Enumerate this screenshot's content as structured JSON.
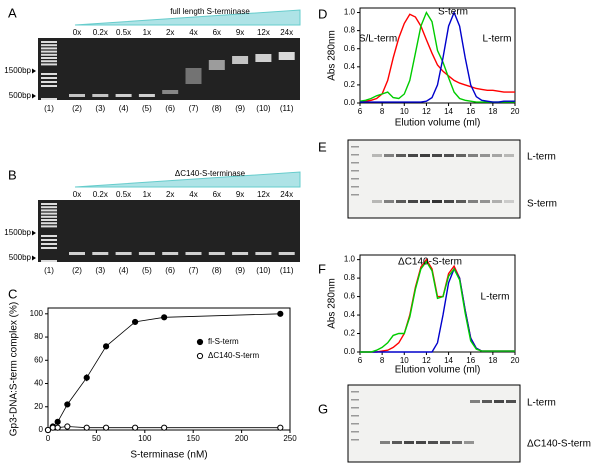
{
  "panels": {
    "A": {
      "letter": "A",
      "title": "full length S-terminase",
      "lanes": [
        "0x",
        "0.2x",
        "0.5x",
        "1x",
        "2x",
        "4x",
        "6x",
        "9x",
        "12x",
        "24x"
      ],
      "lane_numbers": [
        "(1)",
        "(2)",
        "(3)",
        "(4)",
        "(5)",
        "(6)",
        "(7)",
        "(8)",
        "(9)",
        "(10)",
        "(11)"
      ],
      "markers": [
        "1500bp",
        "500bp"
      ]
    },
    "B": {
      "letter": "B",
      "title": "ΔC140-S-terminase",
      "lanes": [
        "0x",
        "0.2x",
        "0.5x",
        "1x",
        "2x",
        "4x",
        "6x",
        "9x",
        "12x",
        "24x"
      ],
      "lane_numbers": [
        "(1)",
        "(2)",
        "(3)",
        "(4)",
        "(5)",
        "(6)",
        "(7)",
        "(8)",
        "(9)",
        "(10)",
        "(11)"
      ],
      "markers": [
        "1500bp",
        "500bp"
      ]
    },
    "E": {
      "letter": "E",
      "bands": [
        "L-term",
        "S-term"
      ]
    },
    "G": {
      "letter": "G",
      "bands": [
        "L-term",
        "ΔC140-S-term"
      ]
    }
  },
  "chart_data": [
    {
      "type": "line",
      "panel": "C",
      "xlabel": "S-terminase (nM)",
      "ylabel": "Gp3-DNA:S-term complex (%)",
      "x": [
        0,
        5,
        10,
        20,
        40,
        60,
        90,
        120,
        240
      ],
      "series": [
        {
          "name": "fl-S-term",
          "color": "#000000",
          "marker": "filled",
          "values": [
            0,
            3,
            7,
            22,
            45,
            72,
            93,
            97,
            100
          ],
          "errors": [
            1,
            1,
            1,
            2,
            3,
            2,
            2,
            1,
            1
          ]
        },
        {
          "name": "ΔC140-S-term",
          "color": "#000000",
          "marker": "open",
          "values": [
            0,
            2,
            2,
            3,
            2,
            2,
            2,
            2,
            2
          ],
          "errors": [
            1,
            1,
            1,
            1,
            1,
            1,
            1,
            1,
            1
          ]
        }
      ],
      "xlim": [
        0,
        250
      ],
      "xticks": [
        0,
        50,
        100,
        150,
        200,
        250
      ],
      "ylim": [
        0,
        105
      ],
      "yticks": [
        0,
        20,
        40,
        60,
        80,
        100
      ],
      "legend": "right"
    },
    {
      "type": "line",
      "panel": "D",
      "xlabel": "Elution volume (ml)",
      "ylabel": "Abs 280nm",
      "x": [
        6,
        6.5,
        7,
        7.5,
        8,
        8.5,
        9,
        9.5,
        10,
        10.5,
        11,
        11.5,
        12,
        12.5,
        13,
        13.5,
        14,
        14.5,
        15,
        15.5,
        16,
        16.5,
        17,
        17.5,
        18,
        18.5,
        19,
        19.5,
        20
      ],
      "series": [
        {
          "name": "S/L-term",
          "color": "#ff0000",
          "values": [
            0.02,
            0.02,
            0.03,
            0.05,
            0.1,
            0.25,
            0.5,
            0.72,
            0.88,
            0.98,
            0.95,
            0.85,
            0.7,
            0.55,
            0.42,
            0.35,
            0.3,
            0.25,
            0.22,
            0.2,
            0.18,
            0.16,
            0.15,
            0.14,
            0.14,
            0.13,
            0.12,
            0.12,
            0.12
          ]
        },
        {
          "name": "S-term",
          "color": "#00cc00",
          "values": [
            0.02,
            0.03,
            0.05,
            0.08,
            0.1,
            0.12,
            0.06,
            0.05,
            0.1,
            0.25,
            0.55,
            0.85,
            1.0,
            0.9,
            0.58,
            0.45,
            0.28,
            0.12,
            0.05,
            0.03,
            0.02,
            0.01,
            0.01,
            0.01,
            0.01,
            0.01,
            0.01,
            0.01,
            0.01
          ]
        },
        {
          "name": "L-term",
          "color": "#0000cc",
          "values": [
            0.01,
            0.01,
            0.01,
            0.01,
            0.01,
            0.01,
            0.01,
            0.01,
            0.01,
            0.01,
            0.01,
            0.01,
            0.02,
            0.06,
            0.2,
            0.5,
            0.85,
            1.0,
            0.85,
            0.5,
            0.2,
            0.07,
            0.03,
            0.02,
            0.01,
            0.01,
            0.02,
            0.02,
            0.02
          ]
        }
      ],
      "xlim": [
        6,
        20
      ],
      "xticks": [
        6,
        8,
        10,
        12,
        14,
        16,
        18,
        20
      ],
      "ylim": [
        0,
        1.05
      ],
      "yticks": [
        {
          "value": 0,
          "label": "0.0"
        },
        0.2,
        0.4,
        0.6,
        0.8,
        {
          "value": 1,
          "label": "1.0"
        }
      ]
    },
    {
      "type": "line",
      "panel": "F",
      "xlabel": "Elution volume (ml)",
      "ylabel": "Abs 280nm",
      "x": [
        6,
        6.5,
        7,
        7.5,
        8,
        8.5,
        9,
        9.5,
        10,
        10.5,
        11,
        11.5,
        12,
        12.5,
        13,
        13.5,
        14,
        14.5,
        15,
        15.5,
        16,
        16.5,
        17,
        17.5,
        18,
        18.5,
        19,
        19.5,
        20
      ],
      "series": [
        {
          "name": "ΔC140-S-term",
          "color": "#ff0000",
          "values": [
            0,
            0,
            0,
            0,
            0.01,
            0.02,
            0.05,
            0.1,
            0.2,
            0.4,
            0.7,
            0.92,
            1.0,
            0.9,
            0.6,
            0.6,
            0.85,
            0.93,
            0.8,
            0.45,
            0.15,
            0.04,
            0.01,
            0.01,
            0.01,
            0.01,
            0.01,
            0.01,
            0.01
          ]
        },
        {
          "name": "L-term",
          "color": "#0000cc",
          "values": [
            0,
            0,
            0,
            0,
            0,
            0,
            0,
            0,
            0,
            0,
            0,
            0,
            0,
            0,
            0.1,
            0.4,
            0.75,
            0.9,
            0.8,
            0.45,
            0.15,
            0.04,
            0.01,
            0.01,
            0.01,
            0.01,
            0.01,
            0.01,
            0.01
          ]
        },
        {
          "color": "#00cc00",
          "values": [
            0,
            0,
            0,
            0.02,
            0.05,
            0.1,
            0.18,
            0.2,
            0.2,
            0.38,
            0.68,
            0.9,
            0.98,
            0.88,
            0.58,
            0.6,
            0.82,
            0.9,
            0.78,
            0.42,
            0.12,
            0.03,
            0.01,
            0.01,
            0.01,
            0.01,
            0.01,
            0.01,
            0.01
          ]
        }
      ],
      "xlim": [
        6,
        20
      ],
      "xticks": [
        6,
        8,
        10,
        12,
        14,
        16,
        18,
        20
      ],
      "ylim": [
        0,
        1.05
      ],
      "yticks": [
        {
          "value": 0,
          "label": "0.0"
        },
        0.2,
        0.4,
        0.6,
        0.8,
        {
          "value": 1,
          "label": "1.0"
        }
      ]
    }
  ]
}
